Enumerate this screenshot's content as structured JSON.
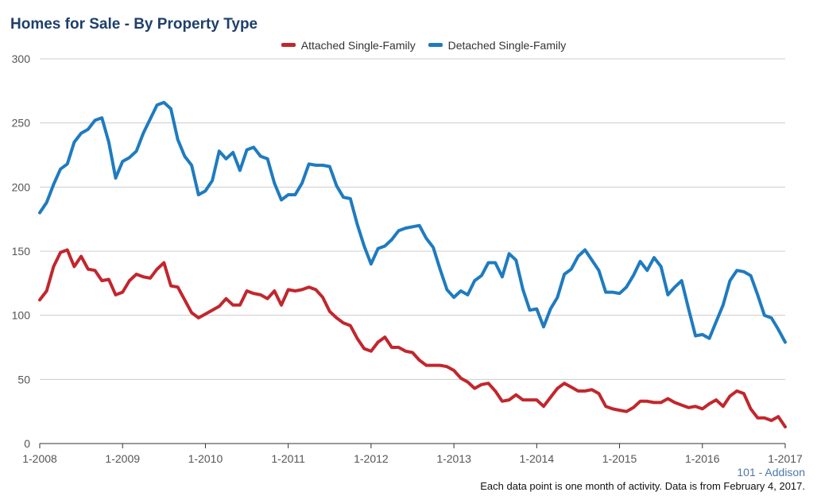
{
  "title": "Homes for Sale - By Property Type",
  "region_label": "101 - Addison",
  "footnote": "Each data point is one month of activity. Data is from February 4, 2017.",
  "colors": {
    "attached": "#c1272d",
    "detached": "#1f7bbf",
    "grid": "#cccccc",
    "title": "#1f3f6b"
  },
  "chart_data": {
    "type": "line",
    "title": "Homes for Sale - By Property Type",
    "xlabel": "",
    "ylabel": "",
    "ylim": [
      0,
      300
    ],
    "yticks": [
      0,
      50,
      100,
      150,
      200,
      250,
      300
    ],
    "xlim": [
      "2008-01",
      "2017-01"
    ],
    "xticks": [
      "1-2008",
      "1-2009",
      "1-2010",
      "1-2011",
      "1-2012",
      "1-2013",
      "1-2014",
      "1-2015",
      "1-2016",
      "1-2017"
    ],
    "grid": true,
    "legend_position": "top-center",
    "x_start": "2008-01",
    "x_step": "month",
    "series": [
      {
        "name": "Attached Single-Family",
        "color": "#c1272d",
        "values": [
          112,
          119,
          138,
          149,
          151,
          138,
          146,
          136,
          135,
          127,
          128,
          116,
          118,
          127,
          132,
          130,
          129,
          136,
          141,
          123,
          122,
          112,
          102,
          98,
          101,
          104,
          107,
          113,
          108,
          108,
          119,
          117,
          116,
          113,
          119,
          108,
          120,
          119,
          120,
          122,
          120,
          114,
          103,
          98,
          94,
          92,
          82,
          74,
          72,
          79,
          83,
          75,
          75,
          72,
          71,
          65,
          61,
          61,
          61,
          60,
          57,
          51,
          48,
          43,
          46,
          47,
          41,
          33,
          34,
          38,
          34,
          34,
          34,
          29,
          36,
          43,
          47,
          44,
          41,
          41,
          42,
          39,
          29,
          27,
          26,
          25,
          28,
          33,
          33,
          32,
          32,
          35,
          32,
          30,
          28,
          29,
          27,
          31,
          34,
          29,
          37,
          41,
          39,
          27,
          20,
          20,
          18,
          21,
          13
        ]
      },
      {
        "name": "Detached Single-Family",
        "color": "#1f7bbf",
        "values": [
          180,
          188,
          202,
          214,
          218,
          235,
          242,
          245,
          252,
          254,
          235,
          207,
          220,
          223,
          228,
          242,
          253,
          264,
          266,
          261,
          237,
          224,
          217,
          194,
          197,
          205,
          228,
          222,
          227,
          213,
          229,
          231,
          224,
          222,
          203,
          190,
          194,
          194,
          203,
          218,
          217,
          217,
          216,
          201,
          192,
          191,
          171,
          154,
          140,
          152,
          154,
          159,
          166,
          168,
          169,
          170,
          160,
          153,
          136,
          120,
          114,
          119,
          116,
          127,
          131,
          141,
          141,
          130,
          148,
          143,
          120,
          104,
          105,
          91,
          105,
          114,
          132,
          136,
          146,
          151,
          143,
          135,
          118,
          118,
          117,
          122,
          131,
          142,
          135,
          145,
          138,
          116,
          122,
          127,
          105,
          84,
          85,
          82,
          95,
          108,
          127,
          135,
          134,
          131,
          116,
          100,
          98,
          89,
          79
        ]
      }
    ]
  }
}
